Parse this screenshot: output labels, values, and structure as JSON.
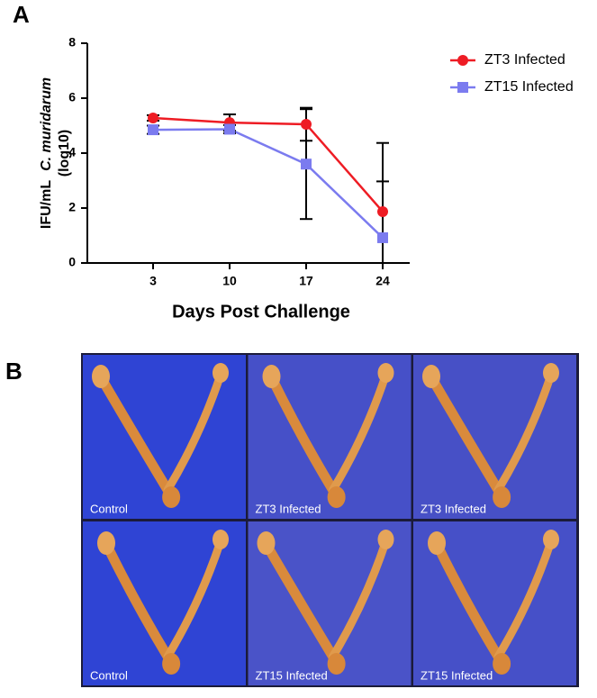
{
  "panel_a": {
    "label": "A"
  },
  "chart_data": {
    "type": "line",
    "categories": [
      "3",
      "10",
      "17",
      "24"
    ],
    "xlabel": "Days  Post  Challenge",
    "ylabel": {
      "prefix": "IFU/mL",
      "species": "C. muridarum",
      "unit": "(log10)"
    },
    "ylim": [
      0,
      8
    ],
    "yticks": [
      0,
      2,
      4,
      6,
      8
    ],
    "legend": "upper right",
    "series": [
      {
        "name": "ZT3 Infected",
        "color": "#ee1c24",
        "marker": "circle",
        "values": [
          5.28,
          5.11,
          5.05,
          1.87
        ],
        "errors": [
          0.1,
          0.3,
          0.6,
          2.5
        ]
      },
      {
        "name": "ZT15 Infected",
        "color": "#7b7bef",
        "marker": "square",
        "values": [
          4.85,
          4.87,
          3.6,
          0.92
        ],
        "errors": [
          0.15,
          0.15,
          2.0,
          2.05
        ]
      }
    ]
  },
  "panel_b": {
    "label": "B",
    "captions": [
      "Control",
      "ZT3 Infected",
      "ZT3 Infected",
      "Control",
      "ZT15 Infected",
      "ZT15 Infected"
    ]
  }
}
